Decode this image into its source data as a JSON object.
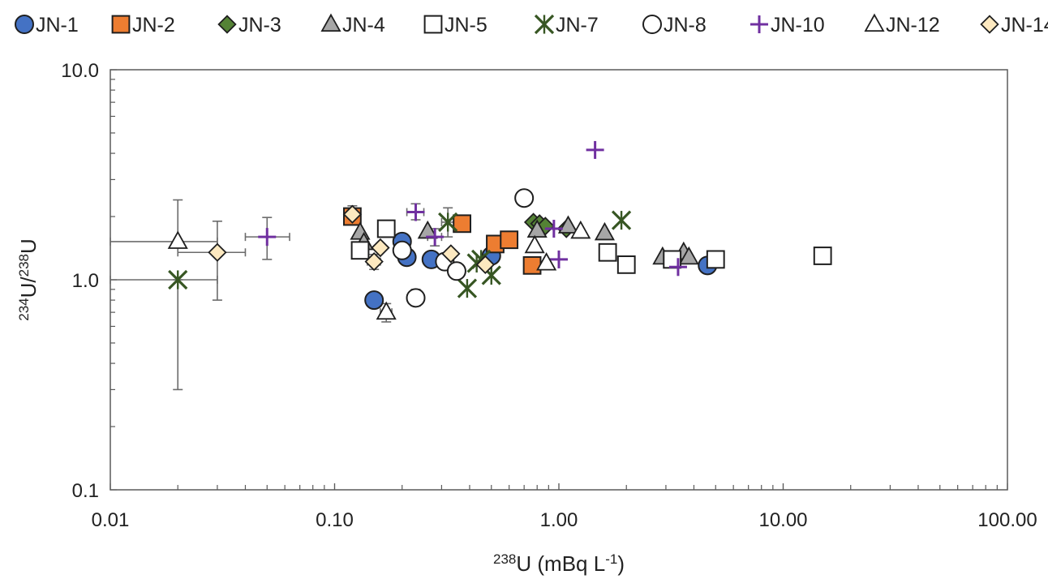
{
  "chart_data": {
    "type": "scatter",
    "x_scale": "log",
    "y_scale": "log",
    "xlim": [
      0.01,
      100
    ],
    "ylim": [
      0.1,
      10
    ],
    "x_ticks": [
      "0.01",
      "0.10",
      "1.00",
      "10.00",
      "100.00"
    ],
    "y_ticks": [
      "0.1",
      "1.0",
      "10.0"
    ],
    "xlabel": {
      "sup": "238",
      "main": "U (mBq L",
      "exp": "-1",
      "close": ")"
    },
    "ylabel": {
      "sup1": "234",
      "mid": "U/",
      "sup2": "238",
      "end": "U"
    },
    "legend_position": "top",
    "series": [
      {
        "name": "JN-1",
        "marker": "circle",
        "fill": "#4472c4",
        "stroke": "#1f1f1f",
        "points": [
          [
            0.15,
            0.8
          ],
          [
            0.2,
            1.52
          ],
          [
            0.21,
            1.28
          ],
          [
            0.27,
            1.25
          ],
          [
            0.5,
            1.3
          ],
          [
            4.6,
            1.17
          ]
        ]
      },
      {
        "name": "JN-2",
        "marker": "square",
        "fill": "#ed7d31",
        "stroke": "#1f1f1f",
        "points": [
          [
            0.12,
            2.0
          ],
          [
            0.37,
            1.85
          ],
          [
            0.52,
            1.48
          ],
          [
            0.6,
            1.55
          ],
          [
            0.76,
            1.17
          ]
        ]
      },
      {
        "name": "JN-3",
        "marker": "diamond",
        "fill": "#548235",
        "stroke": "#1f1f1f",
        "points": [
          [
            0.77,
            1.88
          ],
          [
            0.82,
            1.85
          ],
          [
            0.87,
            1.8
          ],
          [
            1.08,
            1.75
          ]
        ]
      },
      {
        "name": "JN-4",
        "marker": "triangle",
        "fill": "#a6a6a6",
        "stroke": "#1f1f1f",
        "points": [
          [
            0.13,
            1.68
          ],
          [
            0.135,
            1.5
          ],
          [
            0.26,
            1.7
          ],
          [
            0.8,
            1.72
          ],
          [
            1.1,
            1.8
          ],
          [
            1.6,
            1.67
          ],
          [
            2.9,
            1.28
          ],
          [
            3.6,
            1.35
          ],
          [
            3.8,
            1.28
          ]
        ]
      },
      {
        "name": "JN-5",
        "marker": "square",
        "fill": "#ffffff",
        "stroke": "#1f1f1f",
        "points": [
          [
            0.13,
            1.38
          ],
          [
            0.17,
            1.75
          ],
          [
            1.65,
            1.35
          ],
          [
            2.0,
            1.18
          ],
          [
            3.2,
            1.25
          ],
          [
            5.0,
            1.25
          ],
          [
            15.0,
            1.3
          ]
        ]
      },
      {
        "name": "JN-7",
        "marker": "star",
        "fill": "#375623",
        "stroke": "#375623",
        "points": [
          [
            0.02,
            1.0
          ],
          [
            0.32,
            1.88
          ],
          [
            0.39,
            0.91
          ],
          [
            0.43,
            1.2
          ],
          [
            0.45,
            1.25
          ],
          [
            0.5,
            1.05
          ],
          [
            1.9,
            1.92
          ]
        ]
      },
      {
        "name": "JN-8",
        "marker": "circle",
        "fill": "#ffffff",
        "stroke": "#1f1f1f",
        "points": [
          [
            0.2,
            1.38
          ],
          [
            0.23,
            0.82
          ],
          [
            0.31,
            1.22
          ],
          [
            0.35,
            1.1
          ],
          [
            0.7,
            2.45
          ]
        ]
      },
      {
        "name": "JN-10",
        "marker": "plus",
        "fill": "#7030a0",
        "stroke": "#7030a0",
        "points": [
          [
            0.05,
            1.6
          ],
          [
            0.23,
            2.1
          ],
          [
            0.28,
            1.6
          ],
          [
            0.95,
            1.75
          ],
          [
            1.0,
            1.25
          ],
          [
            1.45,
            4.15
          ],
          [
            3.4,
            1.15
          ]
        ]
      },
      {
        "name": "JN-12",
        "marker": "triangle",
        "fill": "#ffffff",
        "stroke": "#1f1f1f",
        "points": [
          [
            0.02,
            1.52
          ],
          [
            0.17,
            0.7
          ],
          [
            0.78,
            1.45
          ],
          [
            0.88,
            1.2
          ],
          [
            1.25,
            1.7
          ]
        ]
      },
      {
        "name": "JN-14",
        "marker": "diamond",
        "fill": "#fde9c0",
        "stroke": "#1f1f1f",
        "points": [
          [
            0.03,
            1.35
          ],
          [
            0.12,
            2.05
          ],
          [
            0.15,
            1.22
          ],
          [
            0.16,
            1.42
          ],
          [
            0.33,
            1.33
          ],
          [
            0.47,
            1.18
          ]
        ]
      }
    ],
    "error_bars": [
      {
        "x": 0.02,
        "y": 1.0,
        "xerr": [
          0.01,
          0.03
        ],
        "yerr": [
          0.3,
          1.0
        ]
      },
      {
        "x": 0.02,
        "y": 1.52,
        "xerr": [
          0.01,
          0.03
        ],
        "yerr": [
          1.5,
          2.4
        ]
      },
      {
        "x": 0.03,
        "y": 1.35,
        "xerr": [
          0.02,
          0.04
        ],
        "yerr": [
          0.8,
          1.9
        ]
      },
      {
        "x": 0.05,
        "y": 1.6,
        "xerr": [
          0.04,
          0.063
        ],
        "yerr": [
          1.25,
          1.98
        ]
      },
      {
        "x": 0.12,
        "y": 2.05,
        "xerr": [
          0.11,
          0.13
        ],
        "yerr": [
          1.92,
          2.25
        ]
      },
      {
        "x": 0.15,
        "y": 1.22,
        "xerr": [
          0.14,
          0.16
        ],
        "yerr": [
          1.12,
          1.32
        ]
      },
      {
        "x": 0.17,
        "y": 0.7,
        "xerr": [
          0.16,
          0.18
        ],
        "yerr": [
          0.63,
          0.77
        ]
      },
      {
        "x": 0.23,
        "y": 2.1,
        "xerr": [
          0.21,
          0.25
        ],
        "yerr": [
          1.93,
          2.3
        ]
      },
      {
        "x": 0.23,
        "y": 0.82,
        "xerr": [
          0.22,
          0.245
        ],
        "yerr": [
          0.75,
          0.9
        ]
      },
      {
        "x": 0.28,
        "y": 1.6,
        "xerr": [
          0.26,
          0.3
        ],
        "yerr": [
          1.45,
          1.75
        ]
      },
      {
        "x": 0.32,
        "y": 1.88,
        "xerr": [
          0.3,
          0.34
        ],
        "yerr": [
          1.6,
          2.2
        ]
      },
      {
        "x": 0.35,
        "y": 1.1,
        "xerr": [
          0.33,
          0.37
        ],
        "yerr": [
          1.02,
          1.2
        ]
      },
      {
        "x": 0.2,
        "y": 1.38,
        "xerr": [
          0.19,
          0.21
        ],
        "yerr": [
          1.27,
          1.5
        ]
      }
    ]
  }
}
